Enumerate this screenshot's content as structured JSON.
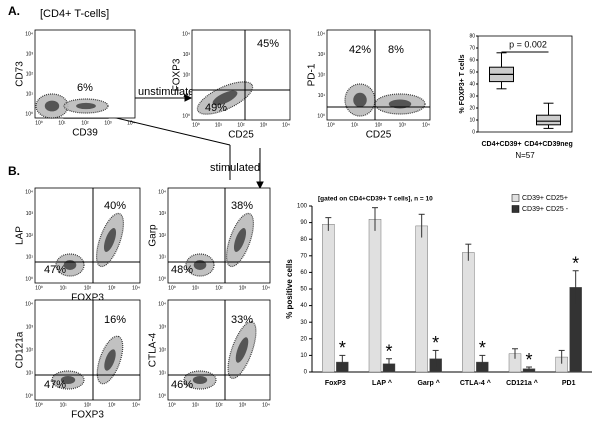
{
  "panel_a": {
    "label": "A.",
    "gate": "[CD4+ T-cells]",
    "unstimulated": "unstimulated",
    "stimulated": "stimulated",
    "plots": [
      {
        "x_label": "CD39",
        "y_label": "CD73",
        "quadrants": [
          "6%"
        ]
      },
      {
        "x_label": "CD25",
        "y_label": "FOXP3",
        "quadrants": [
          "45%",
          "49%"
        ]
      },
      {
        "x_label": "CD25",
        "y_label": "PD-1",
        "quadrants": [
          "42%",
          "8%"
        ]
      }
    ]
  },
  "panel_b": {
    "label": "B.",
    "plots": [
      {
        "x_label": "FOXP3",
        "y_label": "LAP",
        "quadrants": [
          "40%",
          "47%"
        ]
      },
      {
        "y_label": "Garp",
        "quadrants": [
          "38%",
          "48%"
        ]
      },
      {
        "x_label": "FOXP3",
        "y_label": "CD121a",
        "quadrants": [
          "16%",
          "47%"
        ]
      },
      {
        "y_label": "CTLA-4",
        "quadrants": [
          "33%",
          "46%"
        ]
      }
    ]
  },
  "log_ticks": [
    "10⁰",
    "10¹",
    "10²",
    "10³",
    "10⁴"
  ],
  "chart_data": [
    {
      "type": "box",
      "ylabel": "% FOXP3+ T cells",
      "categories": [
        "CD4+CD39+",
        "CD4+CD39neg"
      ],
      "boxes": [
        {
          "min": 36,
          "q1": 42,
          "median": 48,
          "q3": 54,
          "max": 66
        },
        {
          "min": 3,
          "q1": 6,
          "median": 9,
          "q3": 14,
          "max": 24
        }
      ],
      "color": "#cccccc",
      "ylim": [
        0,
        80
      ],
      "yticks": [
        0,
        10,
        20,
        30,
        40,
        50,
        60,
        70,
        80
      ],
      "annotation": "p = 0.002",
      "note": "N=57"
    },
    {
      "type": "bar",
      "title": "[gated on CD4+CD39+ T cells], n = 10",
      "ylabel": "% positive cells",
      "categories": [
        "FoxP3",
        "LAP ^",
        "Garp ^",
        "CTLA-4 ^",
        "CD121a ^",
        "PD1"
      ],
      "series": [
        {
          "name": "CD39+ CD25+",
          "color": "#e0e0e0",
          "values": [
            89,
            92,
            88,
            72,
            11,
            9
          ],
          "errors": [
            4,
            7,
            7,
            5,
            3,
            4
          ]
        },
        {
          "name": "CD39+ CD25 -",
          "color": "#333333",
          "values": [
            6,
            5,
            8,
            6,
            2,
            51
          ],
          "errors": [
            4,
            3,
            5,
            4,
            1,
            10
          ],
          "markers": [
            "*",
            "*",
            "*",
            "*",
            "*",
            "*"
          ]
        }
      ],
      "ylim": [
        0,
        100
      ],
      "yticks": [
        0,
        10,
        20,
        30,
        40,
        50,
        60,
        70,
        80,
        90,
        100
      ],
      "legend": "upper right"
    }
  ]
}
